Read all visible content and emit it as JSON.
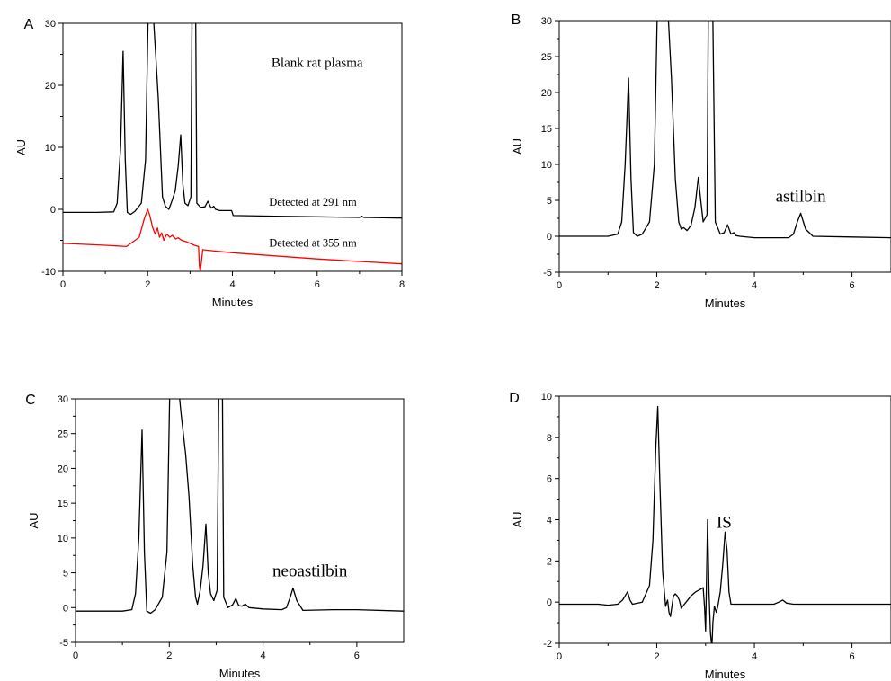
{
  "chart_data": [
    {
      "type": "line",
      "panel_label": "A",
      "xlabel": "Minutes",
      "ylabel": "AU",
      "xlim": [
        0,
        8
      ],
      "ylim": [
        -10,
        30
      ],
      "xticks": [
        0,
        2,
        4,
        6,
        8
      ],
      "yticks": [
        -10,
        0,
        10,
        20,
        30
      ],
      "grid": false,
      "annotations": [
        {
          "text": "Blank rat plasma",
          "x": 6.0,
          "y": 23.0
        },
        {
          "text": "Detected at 291 nm",
          "x": 5.9,
          "y": 0.6
        },
        {
          "text": "Detected at 355 nm",
          "x": 5.9,
          "y": -6.0
        }
      ],
      "series": [
        {
          "color": "#000000",
          "x": [
            0.0,
            0.8,
            1.2,
            1.28,
            1.36,
            1.42,
            1.47,
            1.52,
            1.6,
            1.7,
            1.85,
            1.95,
            2.02,
            2.1,
            2.25,
            2.35,
            2.42,
            2.5,
            2.58,
            2.65,
            2.72,
            2.78,
            2.83,
            2.88,
            2.95,
            3.02,
            3.05,
            3.13,
            3.16,
            3.25,
            3.35,
            3.42,
            3.5,
            3.56,
            3.6,
            3.7,
            3.98,
            4.02,
            5.0,
            6.0,
            7.0,
            7.05,
            7.1,
            8.0
          ],
          "y": [
            -0.5,
            -0.5,
            -0.4,
            1.0,
            10.0,
            25.5,
            8.0,
            -0.5,
            -0.8,
            -0.3,
            1.0,
            8.0,
            35.0,
            35.0,
            18.0,
            2.0,
            0.5,
            0.0,
            1.5,
            3.0,
            7.0,
            12.0,
            4.0,
            1.0,
            0.6,
            2.0,
            35.0,
            35.0,
            1.0,
            0.3,
            0.4,
            1.3,
            0.2,
            0.5,
            0.0,
            -0.2,
            -0.2,
            -1.0,
            -1.1,
            -1.2,
            -1.3,
            -1.1,
            -1.3,
            -1.4
          ]
        },
        {
          "color": "#ff0000",
          "x": [
            0.0,
            1.0,
            1.5,
            1.8,
            1.92,
            2.0,
            2.05,
            2.12,
            2.18,
            2.23,
            2.28,
            2.33,
            2.38,
            2.45,
            2.52,
            2.58,
            2.66,
            2.72,
            2.8,
            2.9,
            3.0,
            3.1,
            3.2,
            3.22,
            3.24,
            3.26,
            3.3,
            3.4,
            4.0,
            5.0,
            6.0,
            7.0,
            8.0
          ],
          "y": [
            -5.5,
            -5.8,
            -6.0,
            -4.5,
            -1.5,
            0.0,
            -1.0,
            -3.0,
            -4.0,
            -3.0,
            -4.5,
            -3.8,
            -5.0,
            -4.0,
            -4.5,
            -4.2,
            -4.8,
            -4.6,
            -5.0,
            -5.2,
            -5.5,
            -5.8,
            -6.0,
            -9.0,
            -10.0,
            -9.0,
            -6.5,
            -6.6,
            -7.0,
            -7.5,
            -8.0,
            -8.4,
            -8.8
          ]
        }
      ]
    },
    {
      "type": "line",
      "panel_label": "B",
      "xlabel": "Minutes",
      "ylabel": "AU",
      "xlim": [
        0,
        6.8
      ],
      "ylim": [
        -5,
        30
      ],
      "xticks": [
        0,
        2,
        4,
        6
      ],
      "yticks": [
        -5,
        0,
        5,
        10,
        15,
        20,
        25,
        30
      ],
      "grid": false,
      "annotations": [
        {
          "text": "astilbin",
          "x": 4.95,
          "y": 4.8
        }
      ],
      "series": [
        {
          "color": "#000000",
          "x": [
            0.0,
            1.0,
            1.2,
            1.28,
            1.35,
            1.42,
            1.47,
            1.52,
            1.6,
            1.7,
            1.85,
            1.95,
            2.02,
            2.2,
            2.3,
            2.38,
            2.45,
            2.5,
            2.55,
            2.62,
            2.7,
            2.78,
            2.85,
            2.9,
            2.95,
            3.03,
            3.06,
            3.14,
            3.2,
            3.3,
            3.38,
            3.45,
            3.52,
            3.58,
            3.62,
            3.7,
            4.0,
            4.7,
            4.8,
            4.88,
            4.95,
            5.05,
            5.2,
            6.0,
            6.8
          ],
          "y": [
            0.0,
            0.0,
            0.3,
            2.0,
            10.0,
            22.0,
            8.0,
            0.5,
            0.0,
            0.3,
            2.0,
            10.0,
            35.0,
            35.0,
            22.0,
            8.0,
            2.0,
            1.0,
            1.2,
            0.8,
            1.5,
            4.0,
            8.2,
            5.0,
            2.0,
            3.0,
            35.0,
            35.0,
            2.0,
            0.3,
            0.5,
            1.6,
            0.3,
            0.5,
            0.1,
            0.0,
            -0.2,
            -0.2,
            0.3,
            2.0,
            3.2,
            1.0,
            0.0,
            -0.1,
            -0.2
          ]
        }
      ]
    },
    {
      "type": "line",
      "panel_label": "C",
      "xlabel": "Minutes",
      "ylabel": "AU",
      "xlim": [
        0,
        7
      ],
      "ylim": [
        -5,
        30
      ],
      "xticks": [
        0,
        2,
        4,
        6
      ],
      "yticks": [
        -5,
        0,
        5,
        10,
        15,
        20,
        25,
        30
      ],
      "grid": false,
      "annotations": [
        {
          "text": "neoastilbin",
          "x": 5.0,
          "y": 4.5
        }
      ],
      "series": [
        {
          "color": "#000000",
          "x": [
            0.0,
            1.0,
            1.2,
            1.28,
            1.35,
            1.42,
            1.47,
            1.52,
            1.6,
            1.7,
            1.85,
            1.95,
            2.02,
            2.15,
            2.25,
            2.35,
            2.42,
            2.5,
            2.56,
            2.6,
            2.66,
            2.72,
            2.78,
            2.83,
            2.88,
            2.95,
            3.02,
            3.06,
            3.13,
            3.16,
            3.25,
            3.35,
            3.42,
            3.48,
            3.55,
            3.62,
            3.7,
            4.0,
            4.4,
            4.5,
            4.58,
            4.64,
            4.72,
            4.85,
            5.5,
            6.0,
            7.0
          ],
          "y": [
            -0.5,
            -0.5,
            -0.3,
            2.0,
            10.0,
            25.5,
            8.0,
            -0.5,
            -0.8,
            -0.3,
            1.5,
            8.0,
            35.0,
            35.0,
            28.0,
            22.0,
            16.0,
            6.0,
            1.5,
            0.5,
            2.5,
            6.0,
            12.0,
            5.0,
            2.0,
            1.0,
            2.5,
            35.0,
            35.0,
            1.5,
            0.0,
            0.4,
            1.3,
            0.3,
            0.2,
            0.5,
            0.0,
            -0.2,
            -0.3,
            0.0,
            1.5,
            2.8,
            1.0,
            -0.4,
            -0.3,
            -0.3,
            -0.5
          ]
        }
      ]
    },
    {
      "type": "line",
      "panel_label": "D",
      "xlabel": "Minutes",
      "ylabel": "AU",
      "xlim": [
        0,
        6.8
      ],
      "ylim": [
        -2,
        10
      ],
      "xticks": [
        0,
        2,
        4,
        6
      ],
      "yticks": [
        -2,
        0,
        2,
        4,
        6,
        8,
        10
      ],
      "grid": false,
      "annotations": [
        {
          "text": "IS",
          "x": 3.38,
          "y": 3.6
        }
      ],
      "series": [
        {
          "color": "#000000",
          "x": [
            0.0,
            0.8,
            1.0,
            1.2,
            1.3,
            1.35,
            1.4,
            1.45,
            1.5,
            1.7,
            1.85,
            1.92,
            1.98,
            2.02,
            2.06,
            2.12,
            2.18,
            2.22,
            2.25,
            2.28,
            2.34,
            2.38,
            2.42,
            2.46,
            2.5,
            2.6,
            2.7,
            2.8,
            2.88,
            2.95,
            2.98,
            3.0,
            3.04,
            3.07,
            3.1,
            3.13,
            3.15,
            3.18,
            3.22,
            3.25,
            3.3,
            3.35,
            3.4,
            3.44,
            3.48,
            3.52,
            3.6,
            3.8,
            4.0,
            4.4,
            4.5,
            4.58,
            4.66,
            4.8,
            5.5,
            6.0,
            6.8
          ],
          "y": [
            -0.1,
            -0.1,
            -0.15,
            -0.1,
            0.1,
            0.3,
            0.5,
            0.1,
            -0.1,
            0.0,
            0.8,
            3.0,
            7.5,
            9.5,
            6.0,
            1.5,
            -0.2,
            0.1,
            -0.5,
            -0.7,
            0.3,
            0.4,
            0.3,
            0.1,
            -0.3,
            0.0,
            0.3,
            0.5,
            0.6,
            0.7,
            -0.3,
            -1.4,
            4.0,
            0.5,
            -1.5,
            -2.2,
            -1.0,
            -0.2,
            -0.5,
            -0.2,
            0.5,
            1.8,
            3.4,
            2.5,
            0.5,
            -0.1,
            -0.1,
            -0.1,
            -0.1,
            -0.1,
            0.0,
            0.1,
            -0.05,
            -0.1,
            -0.1,
            -0.1,
            -0.1
          ]
        }
      ]
    }
  ]
}
